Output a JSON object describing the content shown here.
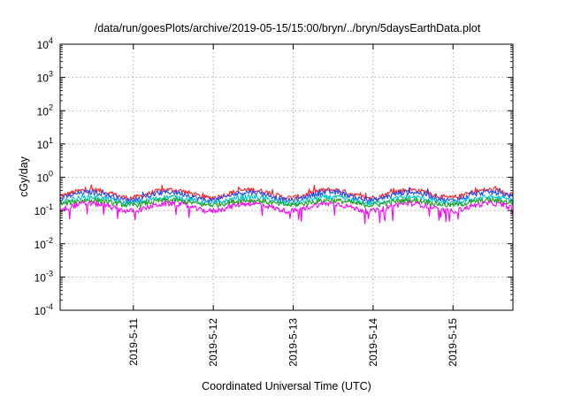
{
  "chart_data": {
    "type": "line",
    "title": "/data/run/goesPlots/archive/2019-05-15/15:00/bryn/../bryn/5daysEarthData.plot",
    "xlabel": "Coordinated Universal Time (UTC)",
    "ylabel": "cGy/day",
    "y_scale": "log",
    "ylim": [
      0.0001,
      10000
    ],
    "y_ticks": [
      {
        "base": "10",
        "exp": "-4",
        "value": 0.0001
      },
      {
        "base": "10",
        "exp": "-3",
        "value": 0.001
      },
      {
        "base": "10",
        "exp": "-2",
        "value": 0.01
      },
      {
        "base": "10",
        "exp": "-1",
        "value": 0.1
      },
      {
        "base": "10",
        "exp": "0",
        "value": 1
      },
      {
        "base": "10",
        "exp": "1",
        "value": 10
      },
      {
        "base": "10",
        "exp": "2",
        "value": 100
      },
      {
        "base": "10",
        "exp": "3",
        "value": 1000
      },
      {
        "base": "10",
        "exp": "4",
        "value": 10000
      }
    ],
    "xlim": [
      "2019-05-10 02:00",
      "2019-05-15 18:00"
    ],
    "x_ticks": [
      "2019-5-11",
      "2019-5-12",
      "2019-5-13",
      "2019-5-14",
      "2019-5-15"
    ],
    "grid": true,
    "legend": "none",
    "series": [
      {
        "color": "#ff2020",
        "baseline": 0.33,
        "amplitude": 0.16
      },
      {
        "color": "#2050ff",
        "baseline": 0.28,
        "amplitude": 0.14
      },
      {
        "color": "#00c8c8",
        "baseline": 0.21,
        "amplitude": 0.08
      },
      {
        "color": "#20a020",
        "baseline": 0.175,
        "amplitude": 0.05
      },
      {
        "color": "#ff00ff",
        "baseline": 0.13,
        "amplitude": 0.06
      }
    ]
  }
}
